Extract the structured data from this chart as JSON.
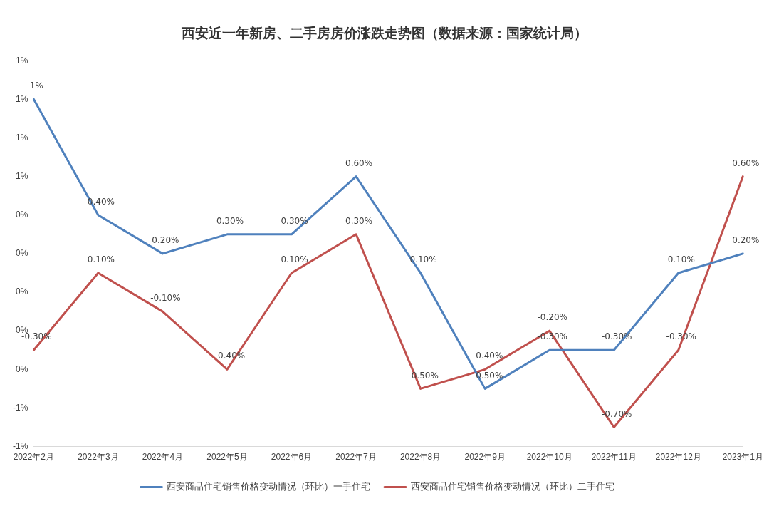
{
  "chart_data": {
    "type": "line",
    "title": "西安近一年新房、二手房房价涨跌走势图（数据来源：国家统计局）",
    "categories": [
      "2022年2月",
      "2022年3月",
      "2022年4月",
      "2022年5月",
      "2022年6月",
      "2022年7月",
      "2022年8月",
      "2022年9月",
      "2022年10月",
      "2022年11月",
      "2022年12月",
      "2023年1月"
    ],
    "series": [
      {
        "name": "西安商品住宅销售价格变动情况（环比）一手住宅",
        "color": "#4f81bd",
        "values": [
          1.0,
          0.4,
          0.2,
          0.3,
          0.3,
          0.6,
          0.1,
          -0.5,
          -0.3,
          -0.3,
          0.1,
          0.2
        ],
        "value_labels": [
          "1%",
          "0.40%",
          "0.20%",
          "0.30%",
          "0.30%",
          "0.60%",
          "0.10%",
          "-0.50%",
          "-0.30%",
          "-0.30%",
          "0.10%",
          "0.20%"
        ]
      },
      {
        "name": "西安商品住宅销售价格变动情况（环比）二手住宅",
        "color": "#c0504d",
        "values": [
          -0.3,
          0.1,
          -0.1,
          -0.4,
          0.1,
          0.3,
          -0.5,
          -0.4,
          -0.2,
          -0.7,
          -0.3,
          0.6
        ],
        "value_labels": [
          "-0.30%",
          "0.10%",
          "-0.10%",
          "-0.40%",
          "0.10%",
          "0.30%",
          "-0.50%",
          "-0.40%",
          "-0.20%",
          "-0.70%",
          "-0.30%",
          "0.60%"
        ]
      }
    ],
    "ylim": [
      -0.8,
      1.2
    ],
    "yticks": [
      {
        "value": -0.8,
        "label": "-1%"
      },
      {
        "value": -0.6,
        "label": "-1%"
      },
      {
        "value": -0.4,
        "label": "0%"
      },
      {
        "value": -0.2,
        "label": "0%"
      },
      {
        "value": 0,
        "label": "0%"
      },
      {
        "value": 0.2,
        "label": "0%"
      },
      {
        "value": 0.4,
        "label": "0%"
      },
      {
        "value": 0.6,
        "label": "1%"
      },
      {
        "value": 0.8,
        "label": "1%"
      },
      {
        "value": 1.0,
        "label": "1%"
      },
      {
        "value": 1.2,
        "label": "1%"
      }
    ],
    "grid": false,
    "legend": "bottom",
    "marker": "none",
    "line_style": "solid"
  }
}
